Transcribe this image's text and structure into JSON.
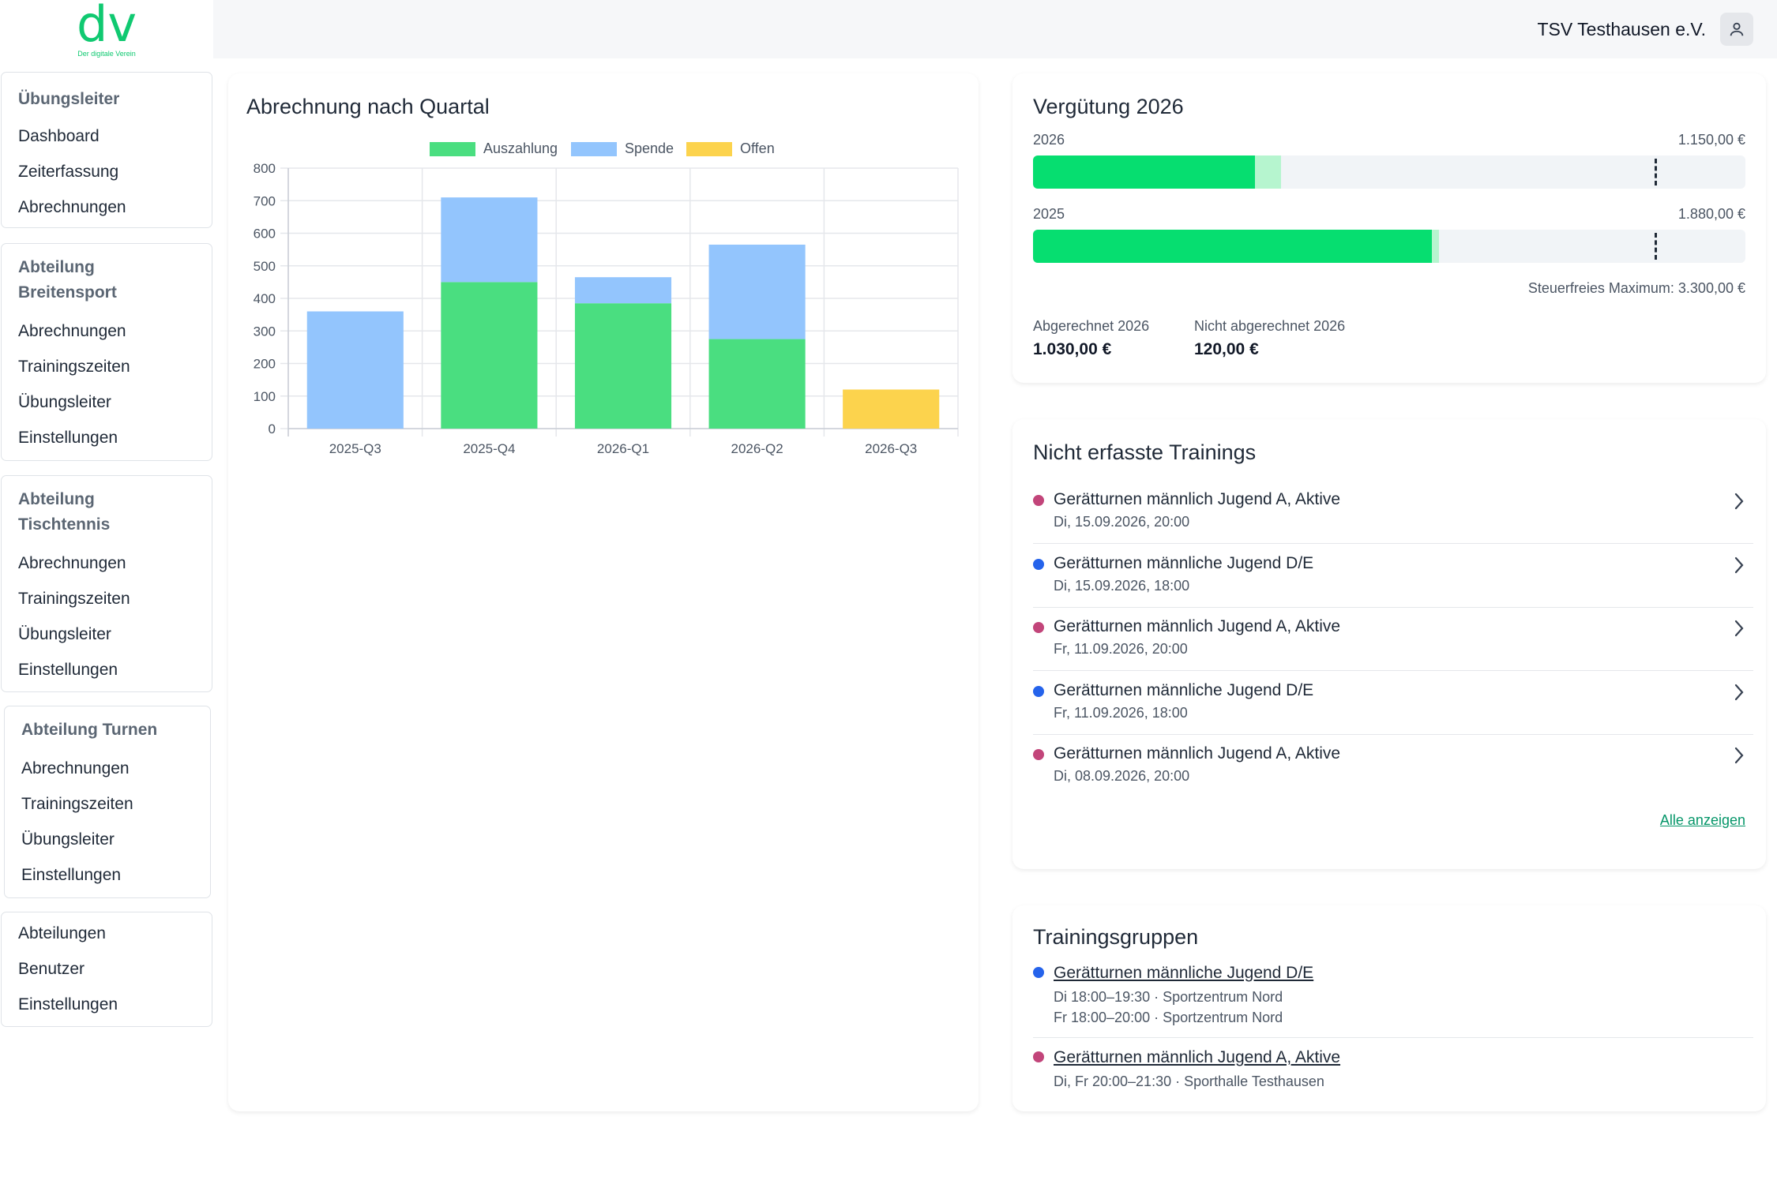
{
  "app": {
    "logo_text": "dv",
    "logo_subtitle": "Der digitale Verein",
    "club_name": "TSV Testhausen e.V."
  },
  "sidebar": {
    "groups": [
      {
        "title": "Übungsleiter",
        "items": [
          "Dashboard",
          "Zeiterfassung",
          "Abrechnungen"
        ]
      },
      {
        "title_line1": "Abteilung",
        "title_line2": "Breitensport",
        "items": [
          "Abrechnungen",
          "Trainingszeiten",
          "Übungsleiter",
          "Einstellungen"
        ]
      },
      {
        "title_line1": "Abteilung",
        "title_line2": "Tischtennis",
        "items": [
          "Abrechnungen",
          "Trainingszeiten",
          "Übungsleiter",
          "Einstellungen"
        ]
      },
      {
        "title": "Abteilung Turnen",
        "items": [
          "Abrechnungen",
          "Trainingszeiten",
          "Übungsleiter",
          "Einstellungen"
        ]
      },
      {
        "items": [
          "Abteilungen",
          "Benutzer",
          "Einstellungen"
        ]
      }
    ]
  },
  "chart_card": {
    "title": "Abrechnung nach Quartal"
  },
  "chart_data": {
    "type": "bar",
    "stacked": true,
    "categories": [
      "2025-Q3",
      "2025-Q4",
      "2026-Q1",
      "2026-Q2",
      "2026-Q3"
    ],
    "series": [
      {
        "name": "Auszahlung",
        "color": "#4ade80",
        "values": [
          0,
          450,
          385,
          275,
          0
        ]
      },
      {
        "name": "Spende",
        "color": "#93c5fd",
        "values": [
          360,
          260,
          80,
          290,
          0
        ]
      },
      {
        "name": "Offen",
        "color": "#fcd34d",
        "values": [
          0,
          0,
          0,
          0,
          120
        ]
      }
    ],
    "ylim": [
      0,
      800
    ],
    "yticks": [
      0,
      100,
      200,
      300,
      400,
      500,
      600,
      700,
      800
    ],
    "grid": true,
    "legend": "top",
    "title": "",
    "xlabel": "",
    "ylabel": ""
  },
  "verguetung": {
    "title": "Vergütung 2026",
    "limit": 3300,
    "bars": [
      {
        "year": "2026",
        "amount": "1.150,00 €",
        "paid_fraction": 0.312,
        "open_fraction": 0.036
      },
      {
        "year": "2025",
        "amount": "1.880,00 €",
        "paid_fraction": 0.56,
        "open_fraction": 0.01
      }
    ],
    "max_note": "Steuerfreies Maximum: 3.300,00 €",
    "stats": [
      {
        "label": "Abgerechnet 2026",
        "value": "1.030,00 €"
      },
      {
        "label": "Nicht abgerechnet 2026",
        "value": "120,00 €"
      }
    ],
    "colors": {
      "paid": "#06de70",
      "open": "#b6f5cf",
      "track": "#f1f4f7"
    }
  },
  "missing": {
    "title": "Nicht erfasste Trainings",
    "items": [
      {
        "name": "Gerätturnen männlich Jugend A, Aktive",
        "time": "Di, 15.09.2026, 20:00",
        "color": "#c2457a"
      },
      {
        "name": "Gerätturnen männliche Jugend D/E",
        "time": "Di, 15.09.2026, 18:00",
        "color": "#2563eb"
      },
      {
        "name": "Gerätturnen männlich Jugend A, Aktive",
        "time": "Fr, 11.09.2026, 20:00",
        "color": "#c2457a"
      },
      {
        "name": "Gerätturnen männliche Jugend D/E",
        "time": "Fr, 11.09.2026, 18:00",
        "color": "#2563eb"
      },
      {
        "name": "Gerätturnen männlich Jugend A, Aktive",
        "time": "Di, 08.09.2026, 20:00",
        "color": "#c2457a"
      }
    ],
    "show_all": "Alle anzeigen"
  },
  "groups": {
    "title": "Trainingsgruppen",
    "items": [
      {
        "name": "Gerätturnen männliche Jugend D/E",
        "lines": [
          "Di 18:00–19:30 · Sportzentrum Nord",
          "Fr 18:00–20:00 · Sportzentrum Nord"
        ],
        "color": "#2563eb"
      },
      {
        "name": "Gerätturnen männlich Jugend A, Aktive",
        "lines": [
          "Di, Fr 20:00–21:30 · Sporthalle Testhausen"
        ],
        "color": "#c2457a"
      }
    ]
  }
}
